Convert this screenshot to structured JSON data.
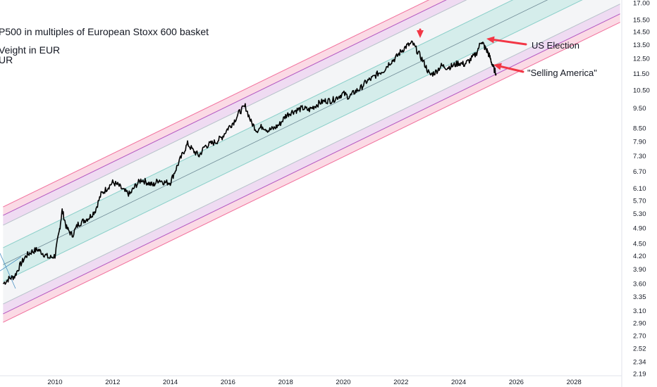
{
  "chart_data": {
    "type": "line",
    "title_lines": [
      "P500 in multiples of European Stoxx 600 basket",
      "Veight in EUR",
      "UR"
    ],
    "x_ticks": [
      2010,
      2012,
      2014,
      2016,
      2018,
      2020,
      2022,
      2024,
      2026,
      2028
    ],
    "y_ticks": [
      "17.00",
      "15.50",
      "14.50",
      "13.50",
      "12.50",
      "11.50",
      "10.50",
      "9.50",
      "8.50",
      "7.90",
      "7.30",
      "6.70",
      "6.10",
      "5.70",
      "5.30",
      "4.90",
      "4.50",
      "4.20",
      "3.90",
      "3.60",
      "3.35",
      "3.10",
      "2.90",
      "2.70",
      "2.52",
      "2.34",
      "2.19"
    ],
    "xlim": [
      2008.2,
      2029.6
    ],
    "ylim": [
      2.19,
      17.0
    ],
    "scale": "log",
    "series": [
      {
        "x": [
          2008.2,
          2008.4,
          2008.6,
          2008.8,
          2009.0,
          2009.2,
          2009.4,
          2009.6,
          2009.8,
          2010.0,
          2010.15,
          2010.25,
          2010.4,
          2010.6,
          2010.8,
          2011.0,
          2011.2,
          2011.4,
          2011.6,
          2011.8,
          2012.0,
          2012.2,
          2012.4,
          2012.6,
          2012.8,
          2013.0,
          2013.2,
          2013.4,
          2013.6,
          2013.8,
          2014.0,
          2014.2,
          2014.4,
          2014.6,
          2014.8,
          2015.0,
          2015.2,
          2015.4,
          2015.6,
          2015.8,
          2016.0,
          2016.2,
          2016.4,
          2016.6,
          2016.8,
          2017.0,
          2017.2,
          2017.4,
          2017.6,
          2017.8,
          2018.0,
          2018.2,
          2018.4,
          2018.6,
          2018.8,
          2019.0,
          2019.2,
          2019.4,
          2019.6,
          2019.8,
          2020.0,
          2020.2,
          2020.4,
          2020.6,
          2020.8,
          2021.0,
          2021.2,
          2021.4,
          2021.6,
          2021.8,
          2022.0,
          2022.2,
          2022.4,
          2022.6,
          2022.8,
          2023.0,
          2023.2,
          2023.4,
          2023.6,
          2023.8,
          2024.0,
          2024.2,
          2024.4,
          2024.6,
          2024.8,
          2024.9,
          2025.0,
          2025.1,
          2025.2,
          2025.3
        ],
        "values": [
          3.6,
          3.7,
          3.75,
          4.0,
          4.2,
          4.3,
          4.35,
          4.25,
          4.15,
          4.2,
          4.8,
          5.4,
          4.9,
          4.7,
          5.0,
          5.1,
          5.2,
          5.4,
          5.9,
          6.1,
          6.3,
          6.2,
          6.0,
          5.9,
          6.2,
          6.4,
          6.3,
          6.2,
          6.4,
          6.3,
          6.3,
          6.8,
          7.3,
          7.8,
          7.5,
          7.3,
          7.7,
          7.8,
          7.9,
          8.1,
          8.5,
          8.8,
          9.3,
          9.6,
          8.8,
          8.4,
          8.6,
          8.4,
          8.5,
          8.7,
          9.1,
          9.3,
          9.4,
          9.5,
          9.4,
          9.6,
          9.8,
          9.9,
          9.9,
          10.1,
          10.3,
          10.1,
          10.4,
          10.6,
          11.0,
          11.2,
          11.5,
          11.7,
          12.2,
          12.5,
          13.0,
          13.4,
          13.6,
          12.9,
          12.2,
          11.4,
          11.6,
          12.0,
          11.9,
          12.0,
          12.2,
          12.1,
          12.4,
          12.8,
          13.8,
          13.3,
          13.0,
          12.5,
          11.9,
          11.5
        ]
      }
    ],
    "channel": {
      "center_start": [
        2008.2,
        4.0
      ],
      "center_end": [
        2029.6,
        21.0
      ]
    },
    "annotations": [
      {
        "text": "US Election"
      },
      {
        "text": "\"Selling America\""
      }
    ],
    "colors": {
      "line": "#000000",
      "outer_band": "#f8bbd0",
      "outer_edge": "#f06292",
      "mid_band": "#e1bee7",
      "mid_edge": "#ab47bc",
      "inner_band": "#b2dfdb",
      "inner_center": "#80cbc4",
      "light_band": "#eceff1",
      "arrow": "#f23645",
      "text": "#131722"
    }
  }
}
